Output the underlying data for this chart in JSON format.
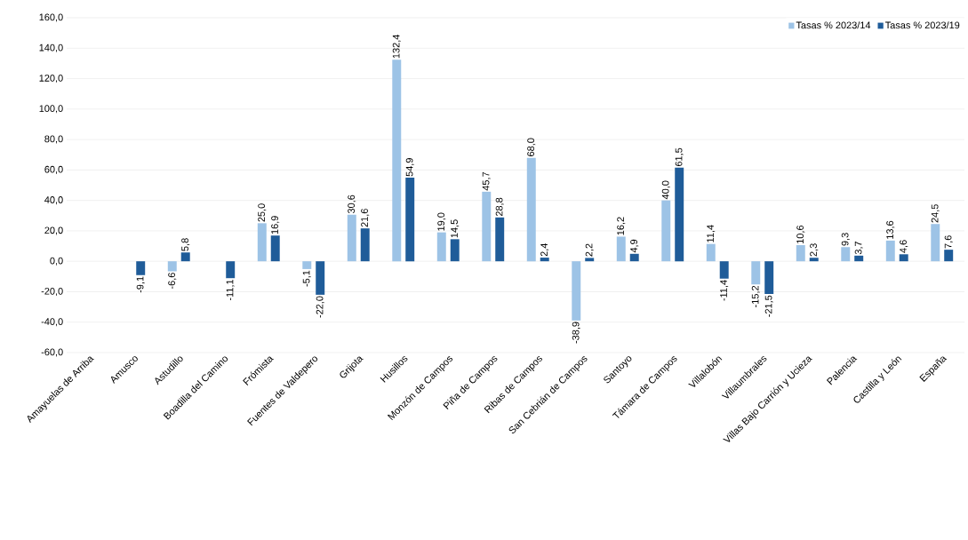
{
  "chart_data": {
    "type": "bar",
    "categories": [
      "Amayuelas de Arriba",
      "Amusco",
      "Astudillo",
      "Boadilla del Camino",
      "Frómista",
      "Fuentes de Valdepero",
      "Grijota",
      "Husillos",
      "Monzón de Campos",
      "Piña de Campos",
      "Ribas de Campos",
      "San Cebrián de Campos",
      "Santoyo",
      "Támara de Campos",
      "Villalobón",
      "Villaumbrales",
      "Villas Bajo Carrión y Ucieza",
      "Palencia",
      "Castilla y León",
      "España"
    ],
    "series": [
      {
        "name": "Tasas % 2023/14",
        "color": "#9dc3e6",
        "values": [
          null,
          null,
          -6.6,
          null,
          25.0,
          -5.1,
          30.6,
          132.4,
          19.0,
          45.7,
          68.0,
          -38.9,
          16.2,
          40.0,
          11.4,
          -15.2,
          10.6,
          9.3,
          13.6,
          24.5
        ],
        "value_labels": [
          null,
          null,
          "-6,6",
          null,
          "25,0",
          "-5,1",
          "30,6",
          "132,4",
          "19,0",
          "45,7",
          "68,0",
          "-38,9",
          "16,2",
          "40,0",
          "11,4",
          "-15,2",
          "10,6",
          "9,3",
          "13,6",
          "24,5"
        ]
      },
      {
        "name": "Tasas % 2023/19",
        "color": "#1f5c99",
        "values": [
          null,
          -9.1,
          5.8,
          -11.1,
          16.9,
          -22.0,
          21.6,
          54.9,
          14.5,
          28.8,
          2.4,
          2.2,
          4.9,
          61.5,
          -11.4,
          -21.5,
          2.3,
          3.7,
          4.6,
          7.6
        ],
        "value_labels": [
          null,
          "-9,1",
          "5,8",
          "-11,1",
          "16,9",
          "-22,0",
          "21,6",
          "54,9",
          "14,5",
          "28,8",
          "2,4",
          "2,2",
          "4,9",
          "61,5",
          "-11,4",
          "-21,5",
          "2,3",
          "3,7",
          "4,6",
          "7,6"
        ]
      }
    ],
    "ylim": [
      -60,
      160
    ],
    "yticks": [
      {
        "value": -60,
        "label": "-60,0"
      },
      {
        "value": -40,
        "label": "-40,0"
      },
      {
        "value": -20,
        "label": "-20,0"
      },
      {
        "value": 0,
        "label": "0,0"
      },
      {
        "value": 20,
        "label": "20,0"
      },
      {
        "value": 40,
        "label": "40,0"
      },
      {
        "value": 60,
        "label": "60,0"
      },
      {
        "value": 80,
        "label": "80,0"
      },
      {
        "value": 100,
        "label": "100,0"
      },
      {
        "value": 120,
        "label": "120,0"
      },
      {
        "value": 140,
        "label": "140,0"
      },
      {
        "value": 160,
        "label": "160,0"
      }
    ],
    "grid": "y",
    "legend": "top right"
  }
}
